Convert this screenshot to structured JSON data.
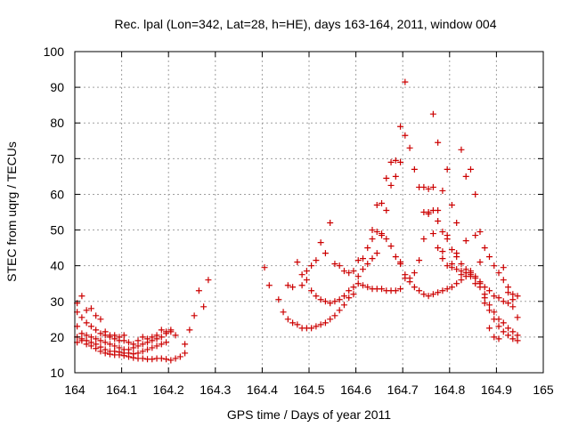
{
  "chart_data": {
    "type": "scatter",
    "title": "Rec. lpal (Lon=342, Lat=28, h=HE), days 163-164, 2011, window 004",
    "xlabel": "GPS time / Days of year 2011",
    "ylabel": "STEC from uqrg / TECUs",
    "xlim": [
      164,
      165
    ],
    "ylim": [
      10,
      100
    ],
    "xticks": [
      "164",
      "164.1",
      "164.2",
      "164.3",
      "164.4",
      "164.5",
      "164.6",
      "164.7",
      "164.8",
      "164.9",
      "165"
    ],
    "yticks": [
      "10",
      "20",
      "30",
      "40",
      "50",
      "60",
      "70",
      "80",
      "90",
      "100"
    ],
    "grid": true,
    "marker": "plus",
    "color": "#cc0000",
    "series": [
      {
        "name": "",
        "points": [
          [
            164.005,
            18.5
          ],
          [
            164.015,
            19.0
          ],
          [
            164.025,
            18.0
          ],
          [
            164.035,
            17.5
          ],
          [
            164.045,
            16.8
          ],
          [
            164.055,
            16.0
          ],
          [
            164.065,
            15.5
          ],
          [
            164.075,
            15.2
          ],
          [
            164.085,
            15.0
          ],
          [
            164.095,
            15.0
          ],
          [
            164.105,
            14.8
          ],
          [
            164.115,
            14.5
          ],
          [
            164.125,
            14.2
          ],
          [
            164.135,
            14.0
          ],
          [
            164.145,
            14.0
          ],
          [
            164.155,
            13.8
          ],
          [
            164.165,
            13.8
          ],
          [
            164.175,
            14.0
          ],
          [
            164.185,
            14.0
          ],
          [
            164.195,
            13.8
          ],
          [
            164.205,
            13.5
          ],
          [
            164.215,
            14.0
          ],
          [
            164.225,
            14.5
          ],
          [
            164.235,
            15.5
          ],
          [
            164.005,
            20.0
          ],
          [
            164.015,
            19.5
          ],
          [
            164.025,
            19.0
          ],
          [
            164.035,
            18.5
          ],
          [
            164.045,
            18.0
          ],
          [
            164.055,
            17.2
          ],
          [
            164.065,
            16.5
          ],
          [
            164.075,
            16.0
          ],
          [
            164.085,
            16.0
          ],
          [
            164.095,
            15.8
          ],
          [
            164.105,
            15.5
          ],
          [
            164.115,
            15.5
          ],
          [
            164.125,
            15.3
          ],
          [
            164.135,
            15.5
          ],
          [
            164.145,
            16.0
          ],
          [
            164.155,
            16.5
          ],
          [
            164.165,
            17.0
          ],
          [
            164.175,
            17.5
          ],
          [
            164.185,
            18.0
          ],
          [
            164.195,
            18.5
          ],
          [
            164.005,
            23.0
          ],
          [
            164.015,
            21.0
          ],
          [
            164.025,
            20.5
          ],
          [
            164.035,
            20.0
          ],
          [
            164.045,
            19.5
          ],
          [
            164.055,
            19.0
          ],
          [
            164.065,
            18.5
          ],
          [
            164.075,
            18.0
          ],
          [
            164.085,
            17.5
          ],
          [
            164.095,
            17.0
          ],
          [
            164.105,
            16.5
          ],
          [
            164.115,
            16.5
          ],
          [
            164.125,
            17.0
          ],
          [
            164.135,
            17.5
          ],
          [
            164.145,
            18.0
          ],
          [
            164.155,
            18.5
          ],
          [
            164.165,
            19.0
          ],
          [
            164.175,
            19.5
          ],
          [
            164.185,
            20.0
          ],
          [
            164.195,
            21.0
          ],
          [
            164.205,
            21.5
          ],
          [
            164.215,
            20.5
          ],
          [
            164.005,
            27.0
          ],
          [
            164.015,
            25.5
          ],
          [
            164.025,
            24.0
          ],
          [
            164.035,
            23.0
          ],
          [
            164.045,
            22.0
          ],
          [
            164.055,
            21.0
          ],
          [
            164.065,
            20.5
          ],
          [
            164.075,
            20.0
          ],
          [
            164.085,
            19.5
          ],
          [
            164.095,
            19.0
          ],
          [
            164.105,
            19.0
          ],
          [
            164.005,
            29.5
          ],
          [
            164.015,
            31.5
          ],
          [
            164.025,
            27.5
          ],
          [
            164.035,
            28.0
          ],
          [
            164.045,
            26.0
          ],
          [
            164.055,
            25.0
          ],
          [
            164.065,
            21.5
          ],
          [
            164.075,
            20.5
          ],
          [
            164.085,
            20.5
          ],
          [
            164.095,
            20.0
          ],
          [
            164.105,
            20.5
          ],
          [
            164.115,
            18.5
          ],
          [
            164.125,
            18.0
          ],
          [
            164.135,
            19.0
          ],
          [
            164.145,
            20.0
          ],
          [
            164.155,
            19.5
          ],
          [
            164.165,
            20.0
          ],
          [
            164.175,
            20.5
          ],
          [
            164.185,
            22.0
          ],
          [
            164.195,
            21.5
          ],
          [
            164.205,
            22.0
          ],
          [
            164.235,
            18.0
          ],
          [
            164.245,
            22.0
          ],
          [
            164.255,
            26.0
          ],
          [
            164.265,
            33.0
          ],
          [
            164.275,
            28.5
          ],
          [
            164.285,
            36.0
          ],
          [
            164.405,
            39.5
          ],
          [
            164.415,
            34.5
          ],
          [
            164.435,
            30.5
          ],
          [
            164.445,
            27.0
          ],
          [
            164.455,
            25.0
          ],
          [
            164.465,
            24.0
          ],
          [
            164.475,
            23.5
          ],
          [
            164.485,
            22.5
          ],
          [
            164.495,
            22.5
          ],
          [
            164.505,
            22.5
          ],
          [
            164.515,
            23.0
          ],
          [
            164.525,
            23.5
          ],
          [
            164.535,
            24.0
          ],
          [
            164.545,
            25.0
          ],
          [
            164.555,
            26.0
          ],
          [
            164.565,
            27.5
          ],
          [
            164.575,
            29.0
          ],
          [
            164.585,
            31.0
          ],
          [
            164.595,
            32.0
          ],
          [
            164.455,
            34.5
          ],
          [
            164.465,
            34.0
          ],
          [
            164.475,
            41.0
          ],
          [
            164.485,
            34.5
          ],
          [
            164.495,
            36.0
          ],
          [
            164.505,
            33.0
          ],
          [
            164.515,
            31.5
          ],
          [
            164.525,
            30.5
          ],
          [
            164.535,
            30.0
          ],
          [
            164.545,
            29.5
          ],
          [
            164.555,
            30.0
          ],
          [
            164.565,
            30.5
          ],
          [
            164.575,
            31.5
          ],
          [
            164.585,
            33.0
          ],
          [
            164.595,
            34.0
          ],
          [
            164.605,
            35.0
          ],
          [
            164.615,
            34.5
          ],
          [
            164.625,
            34.0
          ],
          [
            164.635,
            33.5
          ],
          [
            164.645,
            33.5
          ],
          [
            164.655,
            33.5
          ],
          [
            164.665,
            33.0
          ],
          [
            164.675,
            33.0
          ],
          [
            164.685,
            33.0
          ],
          [
            164.695,
            33.5
          ],
          [
            164.485,
            37.5
          ],
          [
            164.495,
            38.5
          ],
          [
            164.505,
            40.0
          ],
          [
            164.515,
            41.5
          ],
          [
            164.525,
            46.5
          ],
          [
            164.535,
            43.5
          ],
          [
            164.545,
            52.0
          ],
          [
            164.555,
            40.5
          ],
          [
            164.565,
            40.0
          ],
          [
            164.575,
            38.5
          ],
          [
            164.585,
            38.0
          ],
          [
            164.595,
            38.5
          ],
          [
            164.605,
            41.5
          ],
          [
            164.615,
            42.0
          ],
          [
            164.625,
            45.0
          ],
          [
            164.635,
            50.0
          ],
          [
            164.645,
            57.0
          ],
          [
            164.655,
            57.5
          ],
          [
            164.665,
            64.5
          ],
          [
            164.675,
            69.0
          ],
          [
            164.685,
            69.5
          ],
          [
            164.695,
            79.0
          ],
          [
            164.705,
            91.5
          ],
          [
            164.605,
            37.0
          ],
          [
            164.615,
            39.0
          ],
          [
            164.625,
            40.5
          ],
          [
            164.635,
            42.0
          ],
          [
            164.645,
            43.5
          ],
          [
            164.655,
            48.5
          ],
          [
            164.665,
            47.5
          ],
          [
            164.675,
            45.5
          ],
          [
            164.685,
            42.5
          ],
          [
            164.695,
            41.0
          ],
          [
            164.705,
            36.5
          ],
          [
            164.715,
            35.5
          ],
          [
            164.725,
            34.0
          ],
          [
            164.735,
            33.0
          ],
          [
            164.745,
            32.0
          ],
          [
            164.755,
            31.5
          ],
          [
            164.765,
            32.0
          ],
          [
            164.775,
            32.5
          ],
          [
            164.785,
            33.0
          ],
          [
            164.795,
            33.5
          ],
          [
            164.805,
            34.0
          ],
          [
            164.815,
            35.0
          ],
          [
            164.825,
            36.0
          ],
          [
            164.835,
            37.0
          ],
          [
            164.845,
            37.0
          ],
          [
            164.635,
            47.5
          ],
          [
            164.645,
            49.5
          ],
          [
            164.655,
            49.0
          ],
          [
            164.665,
            55.5
          ],
          [
            164.675,
            62.5
          ],
          [
            164.685,
            65.0
          ],
          [
            164.695,
            69.0
          ],
          [
            164.705,
            76.5
          ],
          [
            164.715,
            73.0
          ],
          [
            164.725,
            67.0
          ],
          [
            164.735,
            62.0
          ],
          [
            164.745,
            55.0
          ],
          [
            164.755,
            54.5
          ],
          [
            164.765,
            55.5
          ],
          [
            164.775,
            52.5
          ],
          [
            164.785,
            49.5
          ],
          [
            164.795,
            47.5
          ],
          [
            164.805,
            44.5
          ],
          [
            164.815,
            42.5
          ],
          [
            164.825,
            40.5
          ],
          [
            164.835,
            39.0
          ],
          [
            164.845,
            38.0
          ],
          [
            164.855,
            37.0
          ],
          [
            164.865,
            35.5
          ],
          [
            164.875,
            34.0
          ],
          [
            164.885,
            33.0
          ],
          [
            164.895,
            31.5
          ],
          [
            164.905,
            31.0
          ],
          [
            164.915,
            30.0
          ],
          [
            164.925,
            29.5
          ],
          [
            164.935,
            28.5
          ],
          [
            164.695,
            40.5
          ],
          [
            164.705,
            37.5
          ],
          [
            164.715,
            36.5
          ],
          [
            164.725,
            38.0
          ],
          [
            164.735,
            41.5
          ],
          [
            164.745,
            47.5
          ],
          [
            164.755,
            61.5
          ],
          [
            164.765,
            82.5
          ],
          [
            164.775,
            74.5
          ],
          [
            164.785,
            61.0
          ],
          [
            164.795,
            67.0
          ],
          [
            164.805,
            57.0
          ],
          [
            164.815,
            52.0
          ],
          [
            164.825,
            72.5
          ],
          [
            164.835,
            65.0
          ],
          [
            164.845,
            67.0
          ],
          [
            164.855,
            60.0
          ],
          [
            164.865,
            49.5
          ],
          [
            164.875,
            45.0
          ],
          [
            164.885,
            42.5
          ],
          [
            164.895,
            40.0
          ],
          [
            164.905,
            38.0
          ],
          [
            164.915,
            36.0
          ],
          [
            164.925,
            34.0
          ],
          [
            164.935,
            32.0
          ],
          [
            164.745,
            62.0
          ],
          [
            164.755,
            55.0
          ],
          [
            164.765,
            62.0
          ],
          [
            164.775,
            55.5
          ],
          [
            164.785,
            44.0
          ],
          [
            164.795,
            48.5
          ],
          [
            164.805,
            40.5
          ],
          [
            164.815,
            43.5
          ],
          [
            164.825,
            37.5
          ],
          [
            164.835,
            47.0
          ],
          [
            164.845,
            38.5
          ],
          [
            164.855,
            48.5
          ],
          [
            164.865,
            41.0
          ],
          [
            164.875,
            32.0
          ],
          [
            164.885,
            29.0
          ],
          [
            164.895,
            27.0
          ],
          [
            164.905,
            25.0
          ],
          [
            164.915,
            24.0
          ],
          [
            164.925,
            22.5
          ],
          [
            164.935,
            21.5
          ],
          [
            164.945,
            20.5
          ],
          [
            164.765,
            49.0
          ],
          [
            164.775,
            45.0
          ],
          [
            164.785,
            42.0
          ],
          [
            164.795,
            40.0
          ],
          [
            164.805,
            39.5
          ],
          [
            164.815,
            39.0
          ],
          [
            164.825,
            38.5
          ],
          [
            164.835,
            38.0
          ],
          [
            164.845,
            37.5
          ],
          [
            164.855,
            36.5
          ],
          [
            164.865,
            35.0
          ],
          [
            164.875,
            31.0
          ],
          [
            164.885,
            27.5
          ],
          [
            164.895,
            25.0
          ],
          [
            164.905,
            23.0
          ],
          [
            164.915,
            21.5
          ],
          [
            164.925,
            20.5
          ],
          [
            164.935,
            19.5
          ],
          [
            164.945,
            19.0
          ],
          [
            164.855,
            35.0
          ],
          [
            164.865,
            34.0
          ],
          [
            164.875,
            29.5
          ],
          [
            164.885,
            22.5
          ],
          [
            164.895,
            20.0
          ],
          [
            164.905,
            19.5
          ],
          [
            164.915,
            39.5
          ],
          [
            164.925,
            32.5
          ],
          [
            164.935,
            30.5
          ],
          [
            164.945,
            31.5
          ],
          [
            164.945,
            25.5
          ]
        ]
      }
    ]
  }
}
